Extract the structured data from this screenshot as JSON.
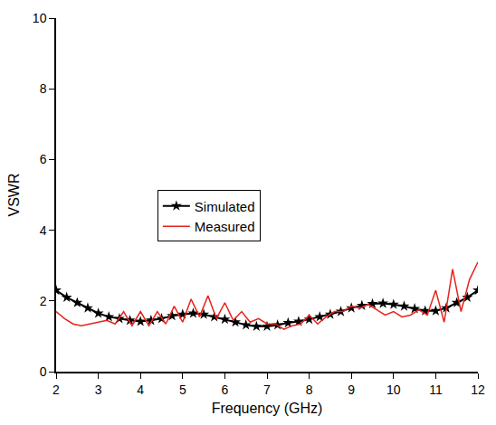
{
  "chart_data": {
    "type": "line",
    "x_label": "Frequency (GHz)",
    "y_label": "VSWR",
    "xlim": [
      2,
      12
    ],
    "ylim": [
      0,
      10
    ],
    "xticks": [
      2,
      3,
      4,
      5,
      6,
      7,
      8,
      9,
      10,
      11,
      12
    ],
    "yticks": [
      0,
      2,
      4,
      6,
      8,
      10
    ],
    "grid": false,
    "legend": "left",
    "series": [
      {
        "name": "Simulated",
        "color": "#000000",
        "marker": "star",
        "line_style": "solid",
        "x": [
          2.0,
          2.25,
          2.5,
          2.75,
          3.0,
          3.25,
          3.5,
          3.75,
          4.0,
          4.25,
          4.5,
          4.75,
          5.0,
          5.25,
          5.5,
          5.75,
          6.0,
          6.25,
          6.5,
          6.75,
          7.0,
          7.25,
          7.5,
          7.75,
          8.0,
          8.25,
          8.5,
          8.75,
          9.0,
          9.25,
          9.5,
          9.75,
          10.0,
          10.25,
          10.5,
          10.75,
          11.0,
          11.25,
          11.5,
          11.75,
          12.0
        ],
        "values": [
          2.3,
          2.1,
          1.95,
          1.8,
          1.65,
          1.55,
          1.5,
          1.45,
          1.42,
          1.45,
          1.5,
          1.58,
          1.62,
          1.65,
          1.62,
          1.55,
          1.48,
          1.4,
          1.32,
          1.28,
          1.28,
          1.32,
          1.38,
          1.42,
          1.48,
          1.55,
          1.62,
          1.7,
          1.8,
          1.87,
          1.92,
          1.93,
          1.9,
          1.85,
          1.78,
          1.72,
          1.72,
          1.8,
          1.95,
          2.1,
          2.3
        ]
      },
      {
        "name": "Measured",
        "color": "#e8221c",
        "line_style": "solid",
        "x": [
          2.0,
          2.2,
          2.4,
          2.6,
          2.8,
          3.0,
          3.2,
          3.4,
          3.6,
          3.8,
          4.0,
          4.2,
          4.4,
          4.6,
          4.8,
          5.0,
          5.2,
          5.4,
          5.6,
          5.8,
          6.0,
          6.2,
          6.4,
          6.6,
          6.8,
          7.0,
          7.2,
          7.4,
          7.6,
          7.8,
          8.0,
          8.2,
          8.4,
          8.6,
          8.8,
          9.0,
          9.2,
          9.4,
          9.6,
          9.8,
          10.0,
          10.2,
          10.4,
          10.6,
          10.8,
          11.0,
          11.2,
          11.4,
          11.6,
          11.8,
          12.0
        ],
        "values": [
          1.7,
          1.5,
          1.35,
          1.3,
          1.35,
          1.4,
          1.45,
          1.35,
          1.7,
          1.3,
          1.7,
          1.3,
          1.7,
          1.35,
          1.85,
          1.4,
          2.05,
          1.55,
          2.15,
          1.5,
          1.95,
          1.45,
          1.7,
          1.4,
          1.5,
          1.35,
          1.35,
          1.2,
          1.3,
          1.35,
          1.6,
          1.35,
          1.55,
          1.7,
          1.7,
          1.85,
          1.8,
          1.9,
          1.75,
          1.6,
          1.7,
          1.55,
          1.6,
          1.75,
          1.6,
          2.3,
          1.4,
          2.9,
          1.7,
          2.6,
          3.1
        ]
      }
    ]
  }
}
